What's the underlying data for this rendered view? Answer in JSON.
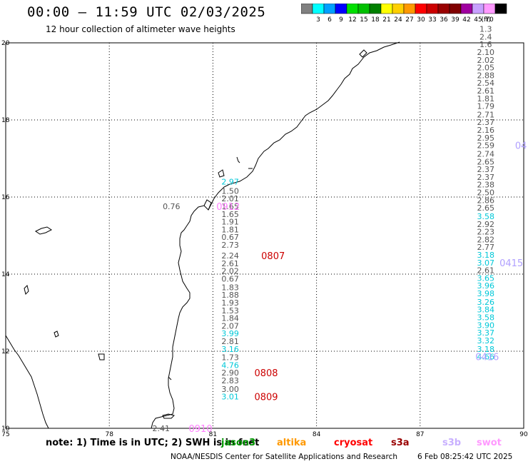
{
  "header": {
    "title": "00:00 – 11:59 UTC 02/03/2025",
    "subtitle": "12 hour collection of altimeter wave heights"
  },
  "legend": {
    "unit": "(ft)",
    "bins": [
      {
        "label": "",
        "color": "#808080"
      },
      {
        "label": "3",
        "color": "#00ffff"
      },
      {
        "label": "6",
        "color": "#00a0ff"
      },
      {
        "label": "9",
        "color": "#0000ff"
      },
      {
        "label": "12",
        "color": "#00e000"
      },
      {
        "label": "15",
        "color": "#00c000"
      },
      {
        "label": "18",
        "color": "#008000"
      },
      {
        "label": "21",
        "color": "#ffff00"
      },
      {
        "label": "24",
        "color": "#ffd000"
      },
      {
        "label": "27",
        "color": "#ff9900"
      },
      {
        "label": "30",
        "color": "#ff0000"
      },
      {
        "label": "33",
        "color": "#cc0000"
      },
      {
        "label": "36",
        "color": "#990000"
      },
      {
        "label": "39",
        "color": "#800000"
      },
      {
        "label": "42",
        "color": "#a000a0"
      },
      {
        "label": "45",
        "color": "#c8a0ff"
      },
      {
        "label": "70",
        "color": "#ff99ff"
      },
      {
        "label": "",
        "color": "#000000"
      }
    ]
  },
  "axes": {
    "lon_ticks": [
      "75",
      "78",
      "81",
      "84",
      "87",
      "90"
    ],
    "lat_ticks": [
      "10",
      "12",
      "14",
      "16",
      "18",
      "20"
    ],
    "lon_range": [
      75,
      90
    ],
    "lat_range": [
      10,
      20
    ]
  },
  "tracks": {
    "track_a": {
      "lon": 81.5,
      "color_hex": "#555555",
      "cyan_hex": "#00c8d8",
      "values": [
        {
          "v": "2.97",
          "lat": 16.4,
          "c": "cyan"
        },
        {
          "v": "1.50",
          "lat": 16.16,
          "c": "gray"
        },
        {
          "v": "2.01",
          "lat": 15.96,
          "c": "gray"
        },
        {
          "v": "1.65",
          "lat": 15.76,
          "c": "gray"
        },
        {
          "v": "1.65",
          "lat": 15.56,
          "c": "gray"
        },
        {
          "v": "1.91",
          "lat": 15.36,
          "c": "gray"
        },
        {
          "v": "1.81",
          "lat": 15.16,
          "c": "gray"
        },
        {
          "v": "0.67",
          "lat": 14.96,
          "c": "gray"
        },
        {
          "v": "2.73",
          "lat": 14.76,
          "c": "gray"
        },
        {
          "v": "2.24",
          "lat": 14.48,
          "c": "gray"
        },
        {
          "v": "2.61",
          "lat": 14.28,
          "c": "gray"
        },
        {
          "v": "2.02",
          "lat": 14.08,
          "c": "gray"
        },
        {
          "v": "0.67",
          "lat": 13.88,
          "c": "gray"
        },
        {
          "v": "1.83",
          "lat": 13.66,
          "c": "gray"
        },
        {
          "v": "1.88",
          "lat": 13.46,
          "c": "gray"
        },
        {
          "v": "1.93",
          "lat": 13.26,
          "c": "gray"
        },
        {
          "v": "1.53",
          "lat": 13.06,
          "c": "gray"
        },
        {
          "v": "1.84",
          "lat": 12.86,
          "c": "gray"
        },
        {
          "v": "2.07",
          "lat": 12.66,
          "c": "gray"
        },
        {
          "v": "3.99",
          "lat": 12.46,
          "c": "cyan"
        },
        {
          "v": "2.81",
          "lat": 12.26,
          "c": "gray"
        },
        {
          "v": "3.16",
          "lat": 12.06,
          "c": "cyan"
        },
        {
          "v": "1.73",
          "lat": 11.84,
          "c": "gray"
        },
        {
          "v": "4.76",
          "lat": 11.64,
          "c": "cyan"
        },
        {
          "v": "2.90",
          "lat": 11.44,
          "c": "gray"
        },
        {
          "v": "2.83",
          "lat": 11.24,
          "c": "gray"
        },
        {
          "v": "3.00",
          "lat": 11.02,
          "c": "gray"
        },
        {
          "v": "3.01",
          "lat": 10.82,
          "c": "cyan"
        }
      ]
    },
    "track_b": {
      "lon": 88.9,
      "values": [
        {
          "v": "1.3",
          "lat": 20.36,
          "c": "gray"
        },
        {
          "v": "2.4",
          "lat": 20.16,
          "c": "gray"
        },
        {
          "v": "1.6",
          "lat": 19.96,
          "c": "gray"
        },
        {
          "v": "2.10",
          "lat": 19.76,
          "c": "gray"
        },
        {
          "v": "2.02",
          "lat": 19.56,
          "c": "gray"
        },
        {
          "v": "2.05",
          "lat": 19.36,
          "c": "gray"
        },
        {
          "v": "2.88",
          "lat": 19.16,
          "c": "gray"
        },
        {
          "v": "2.54",
          "lat": 18.96,
          "c": "gray"
        },
        {
          "v": "2.61",
          "lat": 18.76,
          "c": "gray"
        },
        {
          "v": "1.81",
          "lat": 18.56,
          "c": "gray"
        },
        {
          "v": "1.79",
          "lat": 18.36,
          "c": "gray"
        },
        {
          "v": "2.71",
          "lat": 18.14,
          "c": "gray"
        },
        {
          "v": "2.37",
          "lat": 17.94,
          "c": "gray"
        },
        {
          "v": "2.16",
          "lat": 17.74,
          "c": "gray"
        },
        {
          "v": "2.95",
          "lat": 17.54,
          "c": "gray"
        },
        {
          "v": "2.59",
          "lat": 17.34,
          "c": "gray"
        },
        {
          "v": "2.74",
          "lat": 17.12,
          "c": "gray"
        },
        {
          "v": "2.65",
          "lat": 16.92,
          "c": "gray"
        },
        {
          "v": "2.37",
          "lat": 16.72,
          "c": "gray"
        },
        {
          "v": "2.37",
          "lat": 16.52,
          "c": "gray"
        },
        {
          "v": "2.38",
          "lat": 16.32,
          "c": "gray"
        },
        {
          "v": "2.50",
          "lat": 16.12,
          "c": "gray"
        },
        {
          "v": "2.86",
          "lat": 15.92,
          "c": "gray"
        },
        {
          "v": "2.65",
          "lat": 15.72,
          "c": "gray"
        },
        {
          "v": "3.58",
          "lat": 15.5,
          "c": "cyan"
        },
        {
          "v": "2.92",
          "lat": 15.3,
          "c": "gray"
        },
        {
          "v": "2.23",
          "lat": 15.1,
          "c": "gray"
        },
        {
          "v": "2.82",
          "lat": 14.9,
          "c": "gray"
        },
        {
          "v": "2.77",
          "lat": 14.7,
          "c": "gray"
        },
        {
          "v": "3.18",
          "lat": 14.5,
          "c": "cyan"
        },
        {
          "v": "3.07",
          "lat": 14.3,
          "c": "cyan"
        },
        {
          "v": "2.61",
          "lat": 14.1,
          "c": "gray"
        },
        {
          "v": "3.65",
          "lat": 13.9,
          "c": "cyan"
        },
        {
          "v": "3.96",
          "lat": 13.7,
          "c": "cyan"
        },
        {
          "v": "3.98",
          "lat": 13.5,
          "c": "cyan"
        },
        {
          "v": "3.26",
          "lat": 13.28,
          "c": "cyan"
        },
        {
          "v": "3.84",
          "lat": 13.08,
          "c": "cyan"
        },
        {
          "v": "3.58",
          "lat": 12.88,
          "c": "cyan"
        },
        {
          "v": "3.90",
          "lat": 12.68,
          "c": "cyan"
        },
        {
          "v": "3.37",
          "lat": 12.48,
          "c": "cyan"
        },
        {
          "v": "3.32",
          "lat": 12.28,
          "c": "cyan"
        },
        {
          "v": "3.18",
          "lat": 12.06,
          "c": "cyan"
        },
        {
          "v": "4.66",
          "lat": 11.86,
          "c": "cyan"
        }
      ]
    },
    "extra": [
      {
        "v": "0.76",
        "lat": 15.76,
        "lon": 79.8,
        "c": "gray"
      },
      {
        "v": "2.41",
        "lat": 10.0,
        "lon": 79.5,
        "c": "gray"
      }
    ]
  },
  "time_labels": [
    {
      "t": "0912",
      "lat": 15.76,
      "lon": 81.1,
      "color": "#ff80ff"
    },
    {
      "t": "0807",
      "lat": 14.48,
      "lon": 82.4,
      "color": "#cc0000"
    },
    {
      "t": "0808",
      "lat": 11.44,
      "lon": 82.2,
      "color": "#cc0000"
    },
    {
      "t": "0809",
      "lat": 10.82,
      "lon": 82.2,
      "color": "#cc0000"
    },
    {
      "t": "0910",
      "lat": 10.0,
      "lon": 80.3,
      "color": "#ff80ff"
    },
    {
      "t": "0415",
      "lat": 14.3,
      "lon": 89.3,
      "color": "#b0a0ff"
    },
    {
      "t": "0416",
      "lat": 11.86,
      "lon": 88.6,
      "color": "#b0a0ff"
    },
    {
      "t": "04",
      "lat": 17.34,
      "lon": 89.75,
      "color": "#b0a0ff"
    }
  ],
  "footer": {
    "note": "note: 1) Time is in UTC; 2) SWH is in feet",
    "satellites": [
      {
        "name": "jason3",
        "color": "#009900"
      },
      {
        "name": "altika",
        "color": "#ff9900"
      },
      {
        "name": "cryosat",
        "color": "#ff0000"
      },
      {
        "name": "s3a",
        "color": "#990000"
      },
      {
        "name": "s3b",
        "color": "#c8b0ff"
      },
      {
        "name": "swot",
        "color": "#ff99ff"
      }
    ],
    "credit": "NOAA/NESDIS Center for Satellite Applications and Research",
    "timestamp": "6 Feb 08:25:42 UTC 2025"
  }
}
